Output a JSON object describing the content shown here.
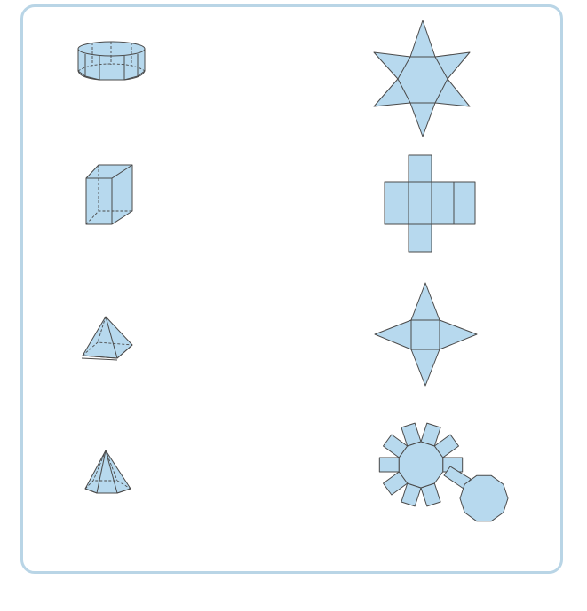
{
  "solids": [
    {
      "id": "decagonal-prism"
    },
    {
      "id": "rectangular-prism"
    },
    {
      "id": "square-pyramid"
    },
    {
      "id": "hexagonal-pyramid"
    }
  ],
  "nets": [
    {
      "id": "hexagonal-pyramid-net"
    },
    {
      "id": "rectangular-prism-net"
    },
    {
      "id": "square-pyramid-net"
    },
    {
      "id": "decagonal-prism-net"
    }
  ],
  "colors": {
    "fill": "#b7d9ee",
    "stroke": "#4a4a4a",
    "frame": "#b9d5e6"
  }
}
